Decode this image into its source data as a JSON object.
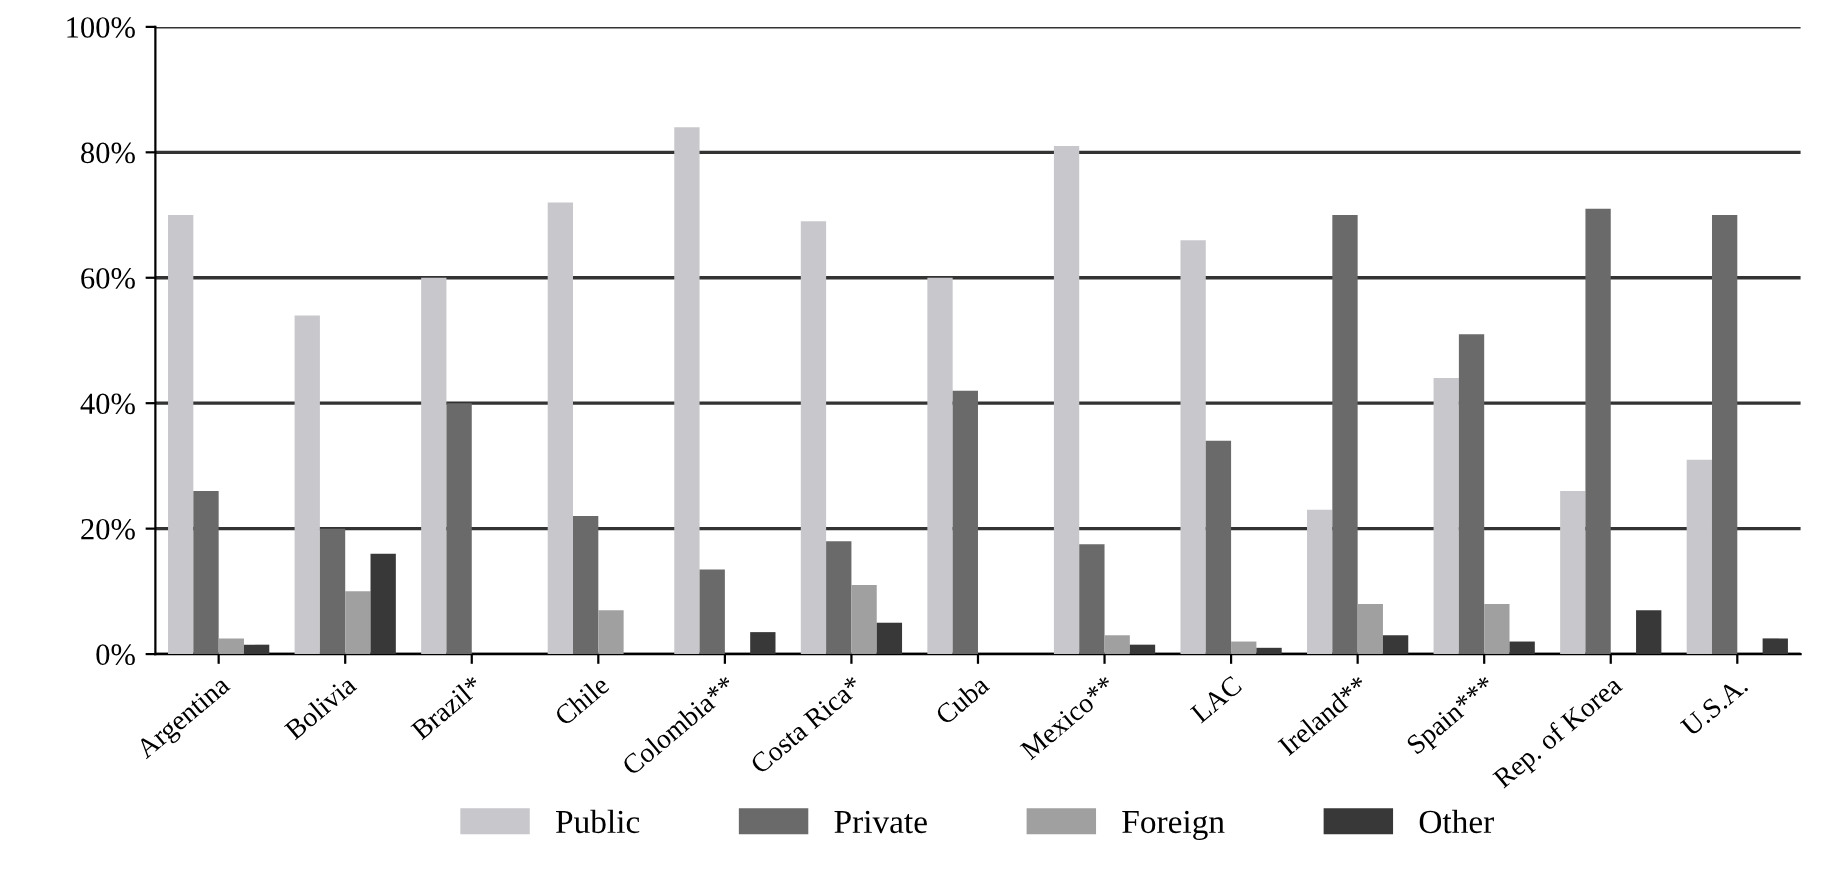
{
  "chart_data": {
    "type": "bar",
    "categories": [
      "Argentina",
      "Bolivia",
      "Brazil*",
      "Chile",
      "Colombia**",
      "Costa Rica*",
      "Cuba",
      "Mexico**",
      "LAC",
      "Ireland**",
      "Spain***",
      "Rep. of Korea",
      "U.S.A."
    ],
    "series": [
      {
        "name": "Public",
        "color": "#c8c8cc",
        "values": [
          70,
          54,
          60,
          72,
          84,
          69,
          60,
          81,
          66,
          23,
          44,
          26,
          31
        ]
      },
      {
        "name": "Private",
        "color": "#6a6a6a",
        "values": [
          26,
          20,
          40,
          22,
          13.5,
          18,
          42,
          17.5,
          34,
          70,
          51,
          71,
          70
        ]
      },
      {
        "name": "Foreign",
        "color": "#a0a0a0",
        "values": [
          2.5,
          10,
          0,
          7,
          0,
          11,
          0,
          3,
          2,
          8,
          8,
          0,
          0
        ]
      },
      {
        "name": "Other",
        "color": "#383838",
        "values": [
          1.5,
          16,
          0,
          0,
          3.5,
          5,
          0,
          1.5,
          1,
          3,
          2,
          7,
          2.5
        ]
      }
    ],
    "ylim": [
      0,
      100
    ],
    "yticks": [
      {
        "value": 0,
        "label": "0%"
      },
      {
        "value": 20,
        "label": "20%"
      },
      {
        "value": 40,
        "label": "40%"
      },
      {
        "value": 60,
        "label": "60%"
      },
      {
        "value": 80,
        "label": "80%"
      },
      {
        "value": 100,
        "label": "100%"
      }
    ],
    "grid": "y",
    "legend": "bottom"
  }
}
